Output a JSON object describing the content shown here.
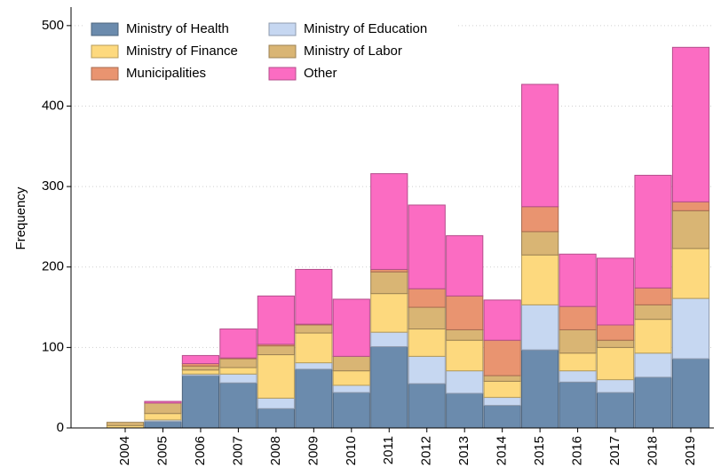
{
  "chart_data": {
    "type": "stacked_bar",
    "y_label": "Frequency",
    "categories": [
      "2004",
      "2005",
      "2006",
      "2007",
      "2008",
      "2009",
      "2010",
      "2011",
      "2012",
      "2013",
      "2014",
      "2015",
      "2016",
      "2017",
      "2018",
      "2019"
    ],
    "series": [
      {
        "name": "Ministry of Health",
        "color": "#6b8bad",
        "values": [
          0,
          8,
          65,
          56,
          24,
          73,
          44,
          101,
          55,
          43,
          28,
          97,
          57,
          44,
          63,
          86
        ]
      },
      {
        "name": "Ministry of Education",
        "color": "#c6d7f1",
        "values": [
          0,
          2,
          2,
          11,
          13,
          8,
          9,
          18,
          34,
          28,
          10,
          56,
          14,
          16,
          30,
          75
        ]
      },
      {
        "name": "Ministry of Finance",
        "color": "#fdd97e",
        "values": [
          3,
          8,
          5,
          8,
          54,
          37,
          18,
          48,
          34,
          38,
          20,
          62,
          22,
          40,
          42,
          62
        ]
      },
      {
        "name": "Ministry of Labor",
        "color": "#d9b574",
        "values": [
          4,
          13,
          5,
          11,
          11,
          10,
          18,
          27,
          27,
          13,
          7,
          29,
          29,
          9,
          18,
          47
        ]
      },
      {
        "name": "Municipalities",
        "color": "#e99470",
        "values": [
          0,
          0,
          3,
          1,
          2,
          1,
          0,
          3,
          23,
          42,
          44,
          31,
          29,
          19,
          21,
          11
        ]
      },
      {
        "name": "Other",
        "color": "#fb6cc2",
        "values": [
          0,
          2,
          10,
          36,
          60,
          68,
          71,
          119,
          104,
          75,
          50,
          152,
          65,
          83,
          140,
          192
        ]
      }
    ],
    "ylim": [
      0,
      523
    ],
    "yticks": [
      0,
      100,
      200,
      300,
      400,
      500
    ],
    "grid": true,
    "legend": "top-left"
  }
}
